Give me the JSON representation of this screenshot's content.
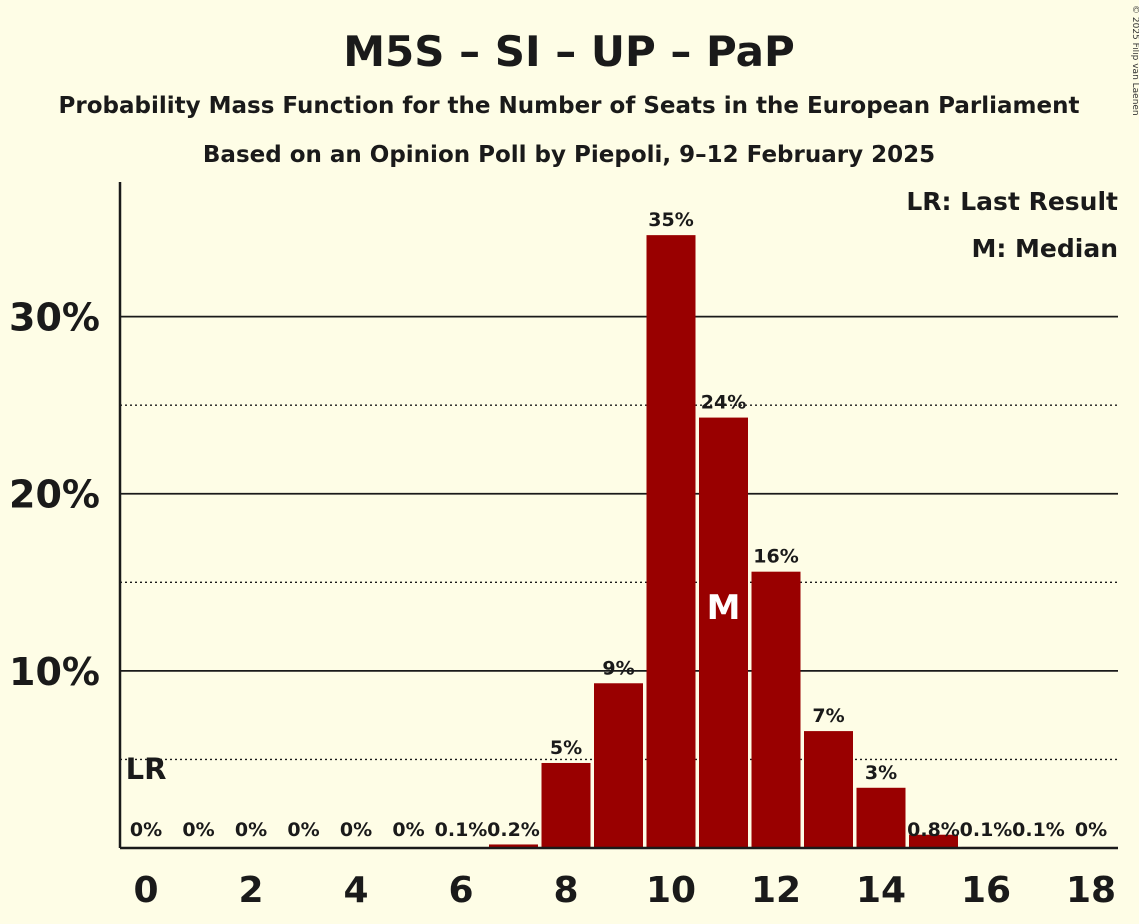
{
  "title": "M5S – SI – UP – PaP",
  "subtitle1": "Probability Mass Function for the Number of Seats in the European Parliament",
  "subtitle2": "Based on an Opinion Poll by Piepoli, 9–12 February 2025",
  "copyright": "© 2025 Filip van Laenen",
  "legend": {
    "last_result": "LR: Last Result",
    "median": "M: Median"
  },
  "markers": {
    "last_result_label": "LR",
    "last_result_seat": 0,
    "median_label": "M",
    "median_seat": 11
  },
  "colors": {
    "background": "#fefde6",
    "bar": "#990000",
    "text": "#1a1a1a",
    "median_text": "#ffffff"
  },
  "chart_data": {
    "type": "bar",
    "x": [
      0,
      1,
      2,
      3,
      4,
      5,
      6,
      7,
      8,
      9,
      10,
      11,
      12,
      13,
      14,
      15,
      16,
      17,
      18
    ],
    "values": [
      0,
      0,
      0,
      0,
      0,
      0,
      0.05,
      0.2,
      4.8,
      9.3,
      34.6,
      24.3,
      15.6,
      6.6,
      3.4,
      0.75,
      0.06,
      0.05,
      0
    ],
    "data_labels": [
      "0%",
      "0%",
      "0%",
      "0%",
      "0%",
      "0%",
      "0.1%",
      "0.2%",
      "5%",
      "9%",
      "35%",
      "24%",
      "16%",
      "7%",
      "3%",
      "0.8%",
      "0.1%",
      "0.1%",
      "0%"
    ],
    "x_ticks": [
      "0",
      "2",
      "4",
      "6",
      "8",
      "10",
      "12",
      "14",
      "16",
      "18"
    ],
    "x_tick_values": [
      0,
      2,
      4,
      6,
      8,
      10,
      12,
      14,
      16,
      18
    ],
    "y_ticks": [
      "10%",
      "20%",
      "30%"
    ],
    "y_tick_values": [
      10,
      20,
      30
    ],
    "y_minor_values": [
      5,
      15,
      25
    ],
    "ylim": [
      0,
      37.6
    ],
    "xlabel": "",
    "ylabel": "",
    "grid": true,
    "legend_position": "top-right"
  }
}
